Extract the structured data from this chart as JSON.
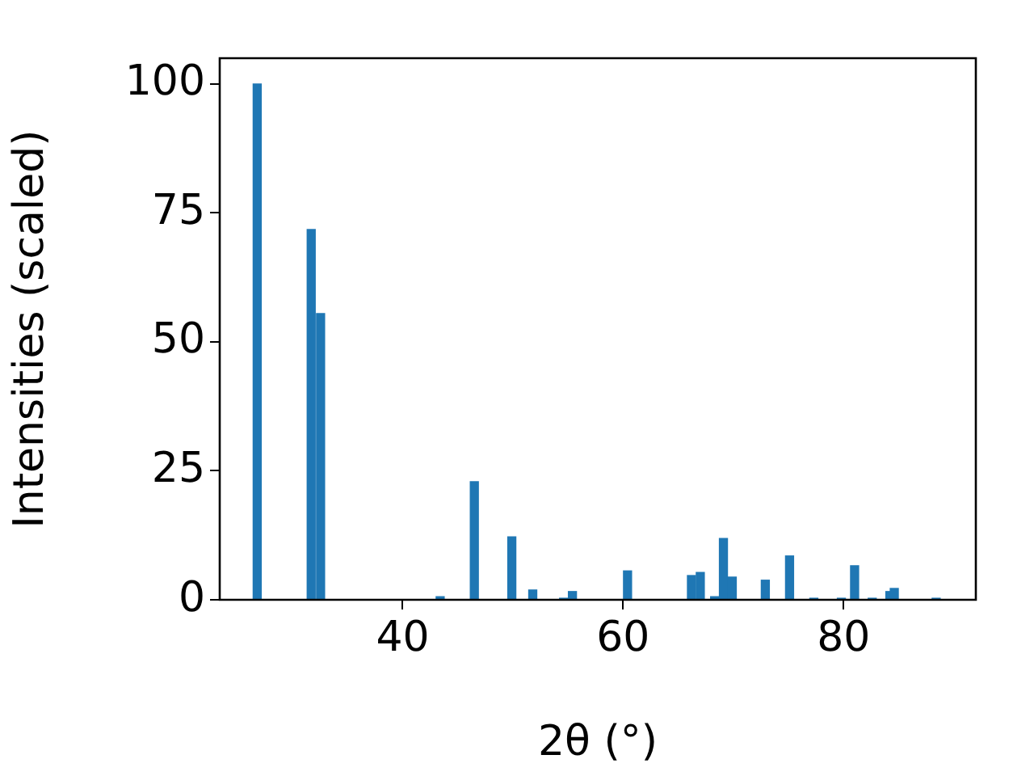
{
  "chart_data": {
    "type": "bar",
    "xlabel": "2θ (°)",
    "ylabel": "Intensities (scaled)",
    "x": [
      26.8,
      31.7,
      32.55,
      43.4,
      46.5,
      49.9,
      51.8,
      54.6,
      55.4,
      60.4,
      66.2,
      67.0,
      68.3,
      69.1,
      69.9,
      72.9,
      75.1,
      77.3,
      79.8,
      81.0,
      82.6,
      84.2,
      84.6,
      88.4
    ],
    "values": [
      100,
      71.8,
      55.5,
      0.6,
      22.9,
      12.2,
      1.9,
      0.3,
      1.6,
      5.6,
      4.7,
      5.3,
      0.6,
      11.9,
      4.4,
      3.8,
      8.5,
      0.3,
      0.3,
      6.6,
      0.3,
      1.6,
      2.2,
      0.3
    ],
    "color": "#1f77b4",
    "xlim": [
      23.4,
      92
    ],
    "xticks": [
      40,
      60,
      80
    ],
    "ylim": [
      0,
      105
    ],
    "yticks": [
      0,
      25,
      50,
      75,
      100
    ],
    "grid": false,
    "legend": false
  }
}
